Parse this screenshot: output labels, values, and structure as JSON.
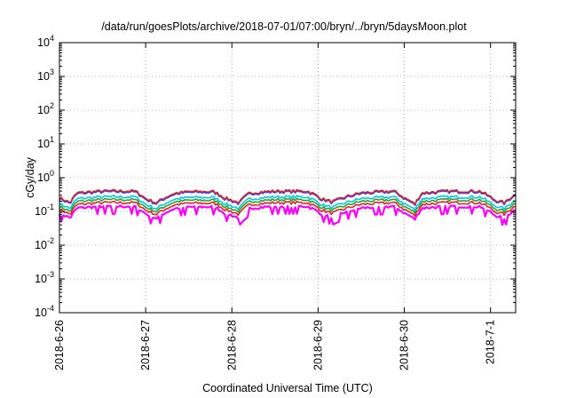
{
  "chart_data": {
    "type": "line",
    "title": "/data/run/goesPlots/archive/2018-07-01/07:00/bryn/../bryn/5daysMoon.plot",
    "xlabel": "Coordinated Universal Time (UTC)",
    "ylabel": "cGy/day",
    "yscale": "log",
    "ylim": [
      0.0001,
      10000
    ],
    "xlim": [
      "2018-06-26",
      "2018-07-01 07:00"
    ],
    "grid": true,
    "x_ticks": [
      "2018-6-26",
      "2018-6-27",
      "2018-6-28",
      "2018-6-29",
      "2018-6-30",
      "2018-7-1"
    ],
    "y_ticks": [
      {
        "base": "10",
        "exp": "-4"
      },
      {
        "base": "10",
        "exp": "-3"
      },
      {
        "base": "10",
        "exp": "-2"
      },
      {
        "base": "10",
        "exp": "-1"
      },
      {
        "base": "10",
        "exp": "0"
      },
      {
        "base": "10",
        "exp": "1"
      },
      {
        "base": "10",
        "exp": "2"
      },
      {
        "base": "10",
        "exp": "3"
      },
      {
        "base": "10",
        "exp": "4"
      }
    ],
    "series_style": [
      {
        "color": "#ff00ff",
        "level": 0.105
      },
      {
        "color": "#e4202a",
        "level": 0.135
      },
      {
        "color": "#2ca02c",
        "level": 0.165
      },
      {
        "color": "#00c8e0",
        "level": 0.2
      },
      {
        "color": "#3040ff",
        "level": 0.28
      },
      {
        "color": "#d62728",
        "level": 0.3
      }
    ],
    "profile_days": [
      "2018-06-26 00:00",
      "2018-06-26 03:00",
      "2018-06-26 05:00",
      "2018-06-26 12:00",
      "2018-06-26 21:00",
      "2018-06-27 00:00",
      "2018-06-27 03:00",
      "2018-06-27 08:00",
      "2018-06-27 12:00",
      "2018-06-27 19:00",
      "2018-06-27 22:00",
      "2018-06-28 02:00",
      "2018-06-28 05:00",
      "2018-06-28 12:00",
      "2018-06-28 21:00",
      "2018-06-29 01:00",
      "2018-06-29 04:00",
      "2018-06-29 12:00",
      "2018-06-29 21:00",
      "2018-06-30 00:00",
      "2018-06-30 03:00",
      "2018-06-30 05:00",
      "2018-06-30 12:00",
      "2018-06-30 21:00",
      "2018-07-01 01:00",
      "2018-07-01 04:00",
      "2018-07-01 07:00"
    ],
    "profile_factor": [
      0.85,
      0.6,
      1.2,
      1.35,
      1.35,
      0.8,
      0.6,
      1.15,
      1.3,
      1.3,
      0.85,
      0.6,
      1.2,
      1.35,
      1.35,
      0.8,
      0.65,
      1.2,
      1.35,
      0.85,
      0.55,
      1.2,
      1.35,
      1.35,
      0.75,
      0.6,
      1.1
    ]
  }
}
